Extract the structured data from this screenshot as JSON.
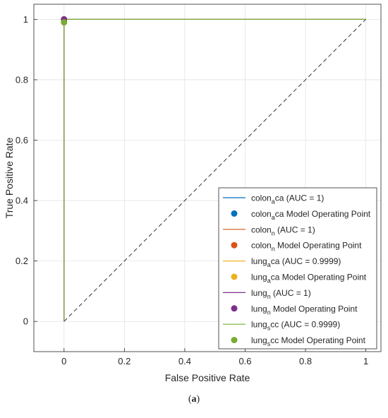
{
  "caption": {
    "open": "(",
    "letter": "a",
    "close": ")"
  },
  "chart_data": {
    "type": "line",
    "title": "",
    "xlabel": "False Positive Rate",
    "ylabel": "True Positive Rate",
    "xlim": [
      -0.1,
      1.05
    ],
    "ylim": [
      -0.1,
      1.05
    ],
    "xticks": [
      0,
      0.2,
      0.4,
      0.6,
      0.8,
      1
    ],
    "yticks": [
      0,
      0.2,
      0.4,
      0.6,
      0.8,
      1
    ],
    "xtick_labels": [
      "0",
      "0.2",
      "0.4",
      "0.6",
      "0.8",
      "1"
    ],
    "ytick_labels": [
      "0",
      "0.2",
      "0.4",
      "0.6",
      "0.8",
      "1"
    ],
    "grid": true,
    "legend_position": "bottom-right",
    "reference_line": {
      "x": [
        0,
        1
      ],
      "y": [
        0,
        1
      ],
      "style": "dashed",
      "color": "#333333"
    },
    "series": [
      {
        "name_base": "colon",
        "name_sub": "a",
        "name_tail": "ca",
        "auc_text": " (AUC = 1)",
        "line_color": "#0072BD",
        "point_color": "#0072BD",
        "x": [
          0,
          0,
          1
        ],
        "y": [
          0,
          1,
          1
        ],
        "operating_point": [
          0,
          1
        ]
      },
      {
        "name_base": "colon",
        "name_sub": "n",
        "name_tail": "",
        "auc_text": " (AUC = 1)",
        "line_color": "#D95319",
        "point_color": "#D95319",
        "x": [
          0,
          0,
          1
        ],
        "y": [
          0,
          1,
          1
        ],
        "operating_point": [
          0,
          1
        ]
      },
      {
        "name_base": "lung",
        "name_sub": "a",
        "name_tail": "ca",
        "auc_text": " (AUC = 0.9999)",
        "line_color": "#EDB120",
        "point_color": "#EDB120",
        "x": [
          0,
          0,
          1
        ],
        "y": [
          0,
          1,
          1
        ],
        "operating_point": [
          0,
          1
        ]
      },
      {
        "name_base": "lung",
        "name_sub": "n",
        "name_tail": "",
        "auc_text": " (AUC = 1)",
        "line_color": "#7E2F8E",
        "point_color": "#7E2F8E",
        "x": [
          0,
          0,
          1
        ],
        "y": [
          0,
          1,
          1
        ],
        "operating_point": [
          0,
          1
        ]
      },
      {
        "name_base": "lung",
        "name_sub": "s",
        "name_tail": "cc",
        "auc_text": " (AUC = 0.9999)",
        "line_color": "#77AC30",
        "point_color": "#77AC30",
        "x": [
          0,
          0,
          1
        ],
        "y": [
          0,
          1,
          1
        ],
        "operating_point": [
          0,
          0.99
        ]
      }
    ],
    "operating_point_suffix": " Model Operating Point"
  }
}
